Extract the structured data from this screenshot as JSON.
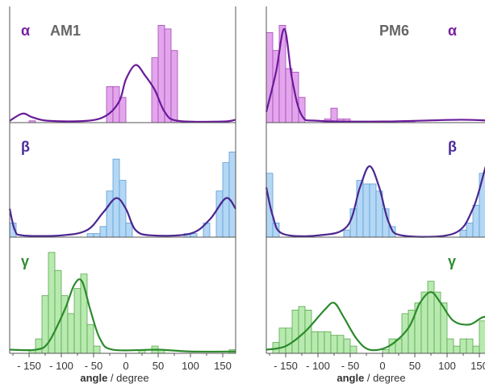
{
  "chart_data": [
    {
      "type": "bar+line",
      "title": "AM1",
      "xlabel_bold": "angle",
      "xlabel_rest": " / degree",
      "xlim": [
        -180,
        170
      ],
      "xticks": [
        -150,
        -100,
        -50,
        0,
        50,
        100,
        150
      ],
      "xtick_labels": [
        "- 150",
        "- 100",
        "- 50",
        "0",
        "50",
        "100",
        "150"
      ],
      "bin_width": 10,
      "rows": [
        {
          "label": "α",
          "label_color": "#7b1fa2",
          "bar_fill": "#e3a6ec",
          "bar_stroke": "#a646b8",
          "line_color": "#6a1b9a",
          "ylim": [
            0,
            30
          ],
          "bars": [
            {
              "x": -145,
              "y": 0.5
            },
            {
              "x": -25,
              "y": 10
            },
            {
              "x": -15,
              "y": 10
            },
            {
              "x": -5,
              "y": 7
            },
            {
              "x": 45,
              "y": 18
            },
            {
              "x": 55,
              "y": 27
            },
            {
              "x": 65,
              "y": 26
            },
            {
              "x": 75,
              "y": 20
            }
          ],
          "curve": [
            {
              "x": -180,
              "y": 0.5
            },
            {
              "x": -160,
              "y": 2.5
            },
            {
              "x": -145,
              "y": 1.5
            },
            {
              "x": -120,
              "y": 0.5
            },
            {
              "x": -60,
              "y": 0.5
            },
            {
              "x": -30,
              "y": 2
            },
            {
              "x": -10,
              "y": 6
            },
            {
              "x": 0,
              "y": 12
            },
            {
              "x": 15,
              "y": 16
            },
            {
              "x": 30,
              "y": 13
            },
            {
              "x": 45,
              "y": 9
            },
            {
              "x": 60,
              "y": 3
            },
            {
              "x": 80,
              "y": 0.5
            },
            {
              "x": 150,
              "y": 0.3
            },
            {
              "x": 170,
              "y": 0.8
            }
          ]
        },
        {
          "label": "β",
          "label_color": "#4a2b9a",
          "bar_fill": "#b3d7f4",
          "bar_stroke": "#5c9fd6",
          "line_color": "#4a2590",
          "ylim": [
            0,
            30
          ],
          "bars": [
            {
              "x": -175,
              "y": 4
            },
            {
              "x": -55,
              "y": 1
            },
            {
              "x": -45,
              "y": 1
            },
            {
              "x": -35,
              "y": 3
            },
            {
              "x": -25,
              "y": 13
            },
            {
              "x": -15,
              "y": 22
            },
            {
              "x": -5,
              "y": 16
            },
            {
              "x": 5,
              "y": 4
            },
            {
              "x": 95,
              "y": 1
            },
            {
              "x": 105,
              "y": 1
            },
            {
              "x": 125,
              "y": 4
            },
            {
              "x": 145,
              "y": 13
            },
            {
              "x": 155,
              "y": 21
            },
            {
              "x": 165,
              "y": 24
            }
          ],
          "curve": [
            {
              "x": -180,
              "y": 8
            },
            {
              "x": -172,
              "y": 2
            },
            {
              "x": -160,
              "y": 0.5
            },
            {
              "x": -100,
              "y": 0.5
            },
            {
              "x": -60,
              "y": 2
            },
            {
              "x": -35,
              "y": 7
            },
            {
              "x": -15,
              "y": 11
            },
            {
              "x": 0,
              "y": 8
            },
            {
              "x": 15,
              "y": 2
            },
            {
              "x": 40,
              "y": 0.5
            },
            {
              "x": 100,
              "y": 1
            },
            {
              "x": 130,
              "y": 5
            },
            {
              "x": 155,
              "y": 11
            },
            {
              "x": 170,
              "y": 8
            }
          ]
        },
        {
          "label": "γ",
          "label_color": "#2e8b2e",
          "bar_fill": "#b8eab0",
          "bar_stroke": "#5aa84e",
          "line_color": "#2c8a2c",
          "ylim": [
            0,
            30
          ],
          "bars": [
            {
              "x": -145,
              "y": 1
            },
            {
              "x": -135,
              "y": 4
            },
            {
              "x": -125,
              "y": 16
            },
            {
              "x": -115,
              "y": 28
            },
            {
              "x": -105,
              "y": 23
            },
            {
              "x": -95,
              "y": 16
            },
            {
              "x": -85,
              "y": 11
            },
            {
              "x": -75,
              "y": 18
            },
            {
              "x": -65,
              "y": 22
            },
            {
              "x": -55,
              "y": 8
            },
            {
              "x": -45,
              "y": 2
            },
            {
              "x": 25,
              "y": 1
            },
            {
              "x": 45,
              "y": 2
            },
            {
              "x": 55,
              "y": 1
            },
            {
              "x": 165,
              "y": 1
            }
          ],
          "curve": [
            {
              "x": -180,
              "y": 1
            },
            {
              "x": -140,
              "y": 1
            },
            {
              "x": -120,
              "y": 3
            },
            {
              "x": -95,
              "y": 12
            },
            {
              "x": -80,
              "y": 19
            },
            {
              "x": -68,
              "y": 20
            },
            {
              "x": -55,
              "y": 12
            },
            {
              "x": -40,
              "y": 4
            },
            {
              "x": -20,
              "y": 1
            },
            {
              "x": 50,
              "y": 1
            },
            {
              "x": 100,
              "y": 0.5
            },
            {
              "x": 170,
              "y": 0.5
            }
          ]
        }
      ]
    },
    {
      "type": "bar+line",
      "title": "PM6",
      "xlabel_bold": "angle",
      "xlabel_rest": " / degree",
      "xlim": [
        -180,
        170
      ],
      "xticks": [
        -150,
        -100,
        -50,
        0,
        50,
        100,
        150
      ],
      "xtick_labels": [
        "- 150",
        "- 100",
        "- 50",
        "0",
        "50",
        "100",
        "150"
      ],
      "bin_width": 10,
      "rows": [
        {
          "label": "α",
          "label_color": "#7b1fa2",
          "bar_fill": "#e3a6ec",
          "bar_stroke": "#a646b8",
          "line_color": "#6a1b9a",
          "ylim": [
            0,
            30
          ],
          "bars": [
            {
              "x": -175,
              "y": 25
            },
            {
              "x": -165,
              "y": 20
            },
            {
              "x": -155,
              "y": 27
            },
            {
              "x": -145,
              "y": 15
            },
            {
              "x": -135,
              "y": 14
            },
            {
              "x": -125,
              "y": 7
            },
            {
              "x": -85,
              "y": 1
            },
            {
              "x": -75,
              "y": 4
            },
            {
              "x": -65,
              "y": 1
            },
            {
              "x": -55,
              "y": 1
            },
            {
              "x": 35,
              "y": 0.5
            },
            {
              "x": 45,
              "y": 0.5
            }
          ],
          "curve": [
            {
              "x": -180,
              "y": 3
            },
            {
              "x": -165,
              "y": 14
            },
            {
              "x": -152,
              "y": 26
            },
            {
              "x": -140,
              "y": 12
            },
            {
              "x": -125,
              "y": 2
            },
            {
              "x": -100,
              "y": 0.5
            },
            {
              "x": 0,
              "y": 0.3
            },
            {
              "x": 120,
              "y": 0.8
            },
            {
              "x": 170,
              "y": 0.5
            }
          ]
        },
        {
          "label": "β",
          "label_color": "#4a2b9a",
          "bar_fill": "#b3d7f4",
          "bar_stroke": "#5c9fd6",
          "line_color": "#4a2590",
          "ylim": [
            0,
            30
          ],
          "bars": [
            {
              "x": -175,
              "y": 18
            },
            {
              "x": -165,
              "y": 4
            },
            {
              "x": -55,
              "y": 2
            },
            {
              "x": -45,
              "y": 8
            },
            {
              "x": -35,
              "y": 16
            },
            {
              "x": -25,
              "y": 15
            },
            {
              "x": -15,
              "y": 15
            },
            {
              "x": -5,
              "y": 13
            },
            {
              "x": 5,
              "y": 8
            },
            {
              "x": 15,
              "y": 3
            },
            {
              "x": 125,
              "y": 2
            },
            {
              "x": 135,
              "y": 4
            },
            {
              "x": 145,
              "y": 9
            },
            {
              "x": 155,
              "y": 18
            },
            {
              "x": 165,
              "y": 25
            }
          ],
          "curve": [
            {
              "x": -180,
              "y": 14
            },
            {
              "x": -170,
              "y": 6
            },
            {
              "x": -155,
              "y": 1
            },
            {
              "x": -100,
              "y": 0.5
            },
            {
              "x": -55,
              "y": 3
            },
            {
              "x": -35,
              "y": 14
            },
            {
              "x": -20,
              "y": 20
            },
            {
              "x": -5,
              "y": 14
            },
            {
              "x": 10,
              "y": 4
            },
            {
              "x": 30,
              "y": 0.5
            },
            {
              "x": 110,
              "y": 1
            },
            {
              "x": 140,
              "y": 8
            },
            {
              "x": 160,
              "y": 20
            },
            {
              "x": 170,
              "y": 25
            }
          ]
        },
        {
          "label": "γ",
          "label_color": "#2e8b2e",
          "bar_fill": "#b8eab0",
          "bar_stroke": "#5aa84e",
          "line_color": "#2c8a2c",
          "ylim": [
            0,
            30
          ],
          "bars": [
            {
              "x": -165,
              "y": 3
            },
            {
              "x": -155,
              "y": 7
            },
            {
              "x": -145,
              "y": 7
            },
            {
              "x": -135,
              "y": 12
            },
            {
              "x": -125,
              "y": 13
            },
            {
              "x": -115,
              "y": 12
            },
            {
              "x": -105,
              "y": 6
            },
            {
              "x": -95,
              "y": 6
            },
            {
              "x": -85,
              "y": 6
            },
            {
              "x": -75,
              "y": 5
            },
            {
              "x": -65,
              "y": 5
            },
            {
              "x": -55,
              "y": 4
            },
            {
              "x": -45,
              "y": 2
            },
            {
              "x": 5,
              "y": 1
            },
            {
              "x": 15,
              "y": 4
            },
            {
              "x": 25,
              "y": 4
            },
            {
              "x": 35,
              "y": 11
            },
            {
              "x": 45,
              "y": 12
            },
            {
              "x": 55,
              "y": 14
            },
            {
              "x": 65,
              "y": 17
            },
            {
              "x": 75,
              "y": 20
            },
            {
              "x": 85,
              "y": 17
            },
            {
              "x": 95,
              "y": 14
            },
            {
              "x": 105,
              "y": 4
            },
            {
              "x": 115,
              "y": 2
            },
            {
              "x": 125,
              "y": 4
            },
            {
              "x": 135,
              "y": 4
            },
            {
              "x": 145,
              "y": 2
            },
            {
              "x": 155,
              "y": 9
            },
            {
              "x": 165,
              "y": 11
            }
          ],
          "curve": [
            {
              "x": -180,
              "y": 1
            },
            {
              "x": -150,
              "y": 2
            },
            {
              "x": -120,
              "y": 6
            },
            {
              "x": -90,
              "y": 12
            },
            {
              "x": -75,
              "y": 14
            },
            {
              "x": -60,
              "y": 10
            },
            {
              "x": -40,
              "y": 4
            },
            {
              "x": -20,
              "y": 1
            },
            {
              "x": 10,
              "y": 2
            },
            {
              "x": 40,
              "y": 7
            },
            {
              "x": 58,
              "y": 14
            },
            {
              "x": 75,
              "y": 17
            },
            {
              "x": 90,
              "y": 14
            },
            {
              "x": 110,
              "y": 9
            },
            {
              "x": 135,
              "y": 8
            },
            {
              "x": 155,
              "y": 10
            },
            {
              "x": 170,
              "y": 10
            }
          ]
        }
      ]
    }
  ]
}
